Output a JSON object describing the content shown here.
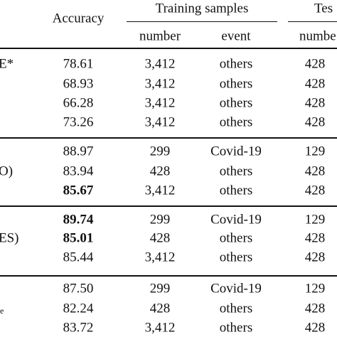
{
  "header": {
    "accuracy": "Accuracy",
    "training": "Training samples",
    "test": "Tes",
    "training_sub": [
      "number",
      "event"
    ],
    "test_sub": [
      "numbe"
    ]
  },
  "groups": [
    {
      "label": "E*",
      "rows": [
        [
          "78.61",
          "3,412",
          "others",
          "428"
        ],
        [
          "68.93",
          "3,412",
          "others",
          "428"
        ],
        [
          "66.28",
          "3,412",
          "others",
          "428"
        ],
        [
          "73.26",
          "3,412",
          "others",
          "428"
        ]
      ]
    },
    {
      "label": "O)",
      "rows": [
        [
          "88.97",
          "299",
          "Covid-19",
          "129"
        ],
        [
          "83.94",
          "428",
          "others",
          "428"
        ],
        [
          {
            "text": "85.67",
            "bold": true
          },
          "3,412",
          "others",
          "428"
        ]
      ]
    },
    {
      "label": "ES)",
      "rows": [
        [
          {
            "text": "89.74",
            "bold": true
          },
          "299",
          "Covid-19",
          "129"
        ],
        [
          {
            "text": "85.01",
            "bold": true
          },
          "428",
          "others",
          "428"
        ],
        [
          "85.44",
          "3,412",
          "others",
          "428"
        ]
      ]
    },
    {
      "label": "e",
      "rows": [
        [
          "87.50",
          "299",
          "Covid-19",
          "129"
        ],
        [
          "82.24",
          "428",
          "others",
          "428"
        ],
        [
          "83.72",
          "3,412",
          "others",
          "428"
        ]
      ]
    }
  ]
}
